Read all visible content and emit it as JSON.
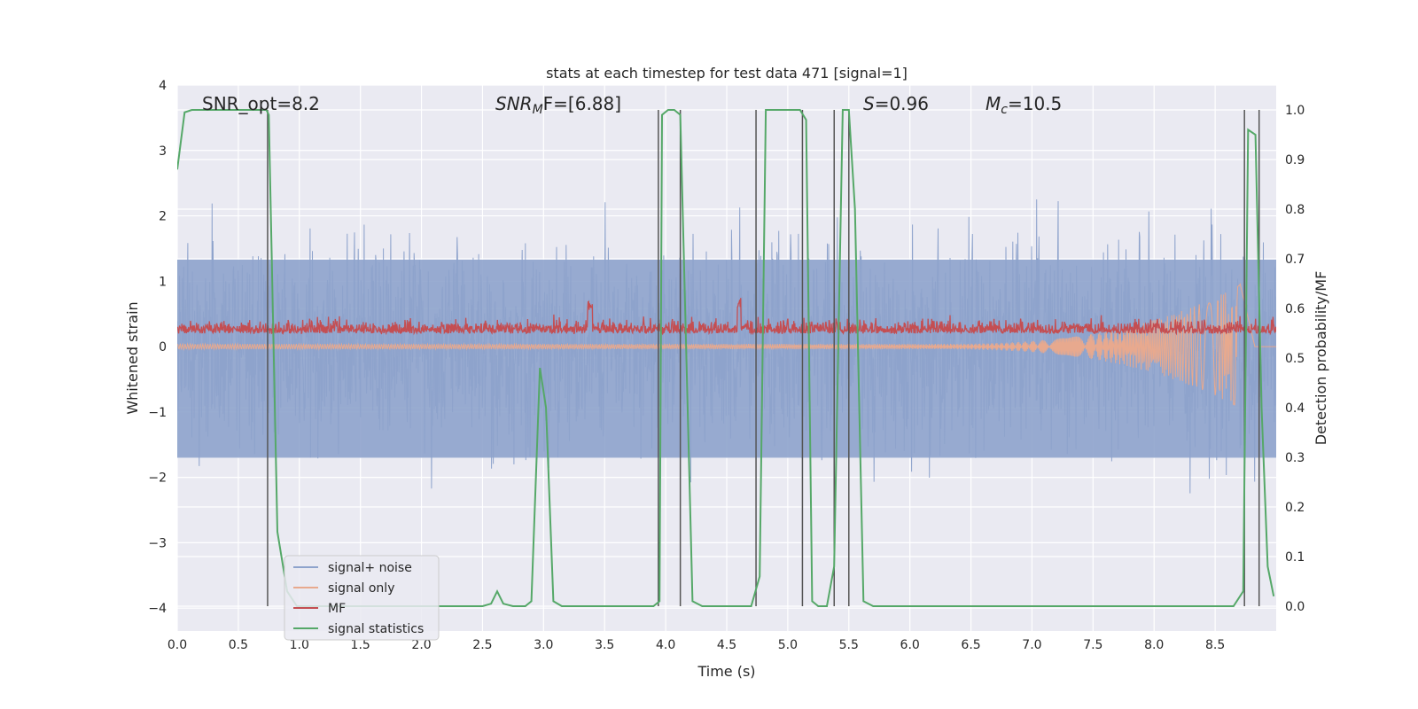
{
  "chart_data": {
    "type": "line",
    "title": "stats at each timestep for test data 471 [signal=1]",
    "xlabel": "Time (s)",
    "ylabel": "Whitened strain",
    "y2label": "Detection probability/MF",
    "xlim": [
      0.0,
      9.0
    ],
    "ylim": [
      -4.35,
      4.0
    ],
    "y2lim": [
      -0.05,
      1.05
    ],
    "x_ticks": [
      "0.0",
      "0.5",
      "1.0",
      "1.5",
      "2.0",
      "2.5",
      "3.0",
      "3.5",
      "4.0",
      "4.5",
      "5.0",
      "5.5",
      "6.0",
      "6.5",
      "7.0",
      "7.5",
      "8.0",
      "8.5"
    ],
    "y_ticks": [
      "4",
      "3",
      "2",
      "1",
      "0",
      "−1",
      "−2",
      "−3",
      "−4"
    ],
    "y2_ticks": [
      "1.0",
      "0.9",
      "0.8",
      "0.7",
      "0.6",
      "0.5",
      "0.4",
      "0.3",
      "0.2",
      "0.1",
      "0.0"
    ],
    "grid": true,
    "legend_position": "lower-left",
    "annotations": {
      "snr_opt": "SNR_opt=8.2",
      "snr_mf_base": "SNR",
      "snr_mf_sub": "M",
      "snr_mf_rest": "F=[6.88]",
      "s_base": "S",
      "s_rest": "=0.96",
      "mc_base": "M",
      "mc_sub": "c",
      "mc_rest": "=10.5"
    },
    "series": [
      {
        "name": "signal+ noise",
        "color": "#8ea3cc",
        "note_envelope": 1.35
      },
      {
        "name": "signal only",
        "color": "#e8a98e"
      },
      {
        "name": "MF",
        "color": "#c44e52"
      },
      {
        "name": "signal statistics",
        "color": "#55a868",
        "x": [
          0.0,
          0.06,
          0.12,
          0.3,
          0.5,
          0.65,
          0.73,
          0.75,
          0.82,
          0.9,
          0.98,
          1.2,
          2.0,
          2.5,
          2.57,
          2.62,
          2.67,
          2.75,
          2.85,
          2.9,
          2.97,
          3.02,
          3.08,
          3.15,
          3.22,
          3.5,
          3.9,
          3.95,
          3.97,
          4.02,
          4.07,
          4.12,
          4.17,
          4.22,
          4.3,
          4.5,
          4.7,
          4.77,
          4.82,
          4.88,
          5.0,
          5.1,
          5.15,
          5.2,
          5.25,
          5.32,
          5.38,
          5.45,
          5.5,
          5.55,
          5.62,
          5.7,
          6.5,
          7.5,
          8.3,
          8.65,
          8.73,
          8.77,
          8.83,
          8.88,
          8.93,
          8.98
        ],
        "y": [
          0.88,
          0.995,
          1.0,
          1.0,
          1.0,
          1.0,
          1.0,
          0.99,
          0.15,
          0.03,
          0.0,
          0.0,
          0.0,
          0.0,
          0.005,
          0.03,
          0.005,
          0.0,
          0.0,
          0.01,
          0.48,
          0.4,
          0.01,
          0.0,
          0.0,
          0.0,
          0.0,
          0.01,
          0.99,
          1.0,
          1.0,
          0.99,
          0.5,
          0.01,
          0.0,
          0.0,
          0.0,
          0.06,
          1.0,
          1.0,
          1.0,
          1.0,
          0.98,
          0.01,
          0.0,
          0.0,
          0.08,
          1.0,
          1.0,
          0.8,
          0.01,
          0.0,
          0.0,
          0.0,
          0.0,
          0.0,
          0.03,
          0.96,
          0.95,
          0.4,
          0.08,
          0.02
        ]
      }
    ],
    "vertical_lines": [
      0.74,
      3.94,
      4.12,
      4.74,
      5.12,
      5.38,
      5.5,
      8.74,
      8.86
    ]
  }
}
